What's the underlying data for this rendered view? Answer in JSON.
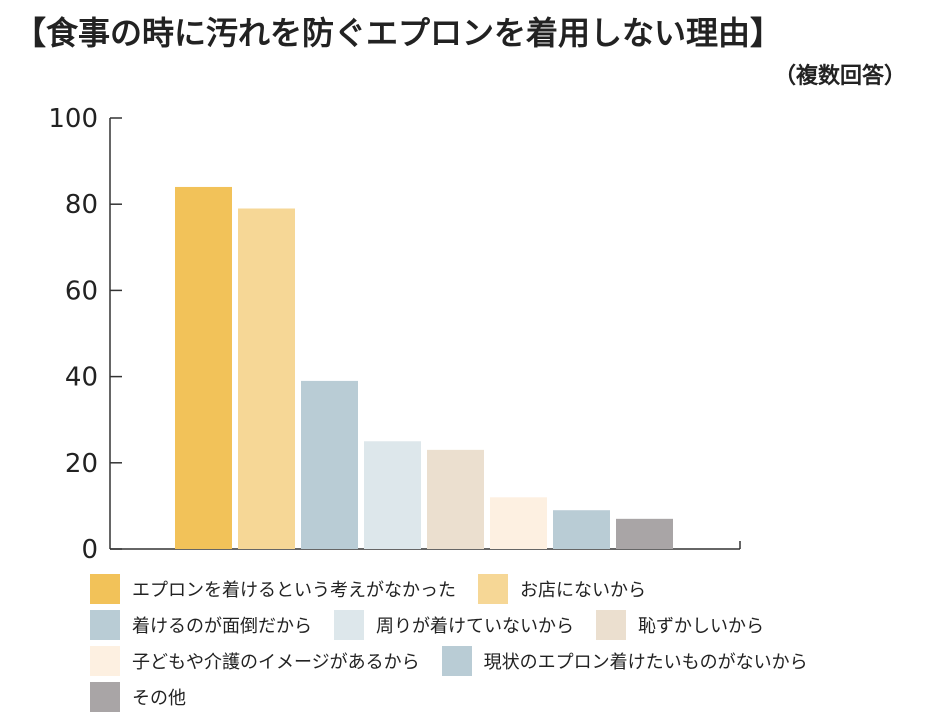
{
  "title": "【食事の時に汚れを防ぐエプロンを着用しない理由】",
  "subtitle": "（複数回答）",
  "chart_data": {
    "type": "bar",
    "categories": [
      "エプロンを着けるという考えがなかった",
      "お店にないから",
      "着けるのが面倒だから",
      "周りが着けていないから",
      "恥ずかしいから",
      "子どもや介護のイメージがあるから",
      "現状のエプロン着けたいものがないから",
      "その他"
    ],
    "values": [
      84,
      79,
      39,
      25,
      23,
      12,
      9,
      7
    ],
    "colors": [
      "#f2c259",
      "#f6d796",
      "#b9ccd5",
      "#dde7eb",
      "#ebdfcf",
      "#fdf0e1",
      "#b9ccd5",
      "#a9a5a6"
    ],
    "ylim": [
      0,
      100
    ],
    "yticks": [
      "0",
      "20",
      "40",
      "60",
      "80",
      "100"
    ],
    "grid": false,
    "legend": "bottom",
    "xlabel": "",
    "ylabel": ""
  },
  "legend_rows": [
    [
      0,
      1
    ],
    [
      2,
      3,
      4
    ],
    [
      5,
      6
    ],
    [
      7
    ]
  ]
}
